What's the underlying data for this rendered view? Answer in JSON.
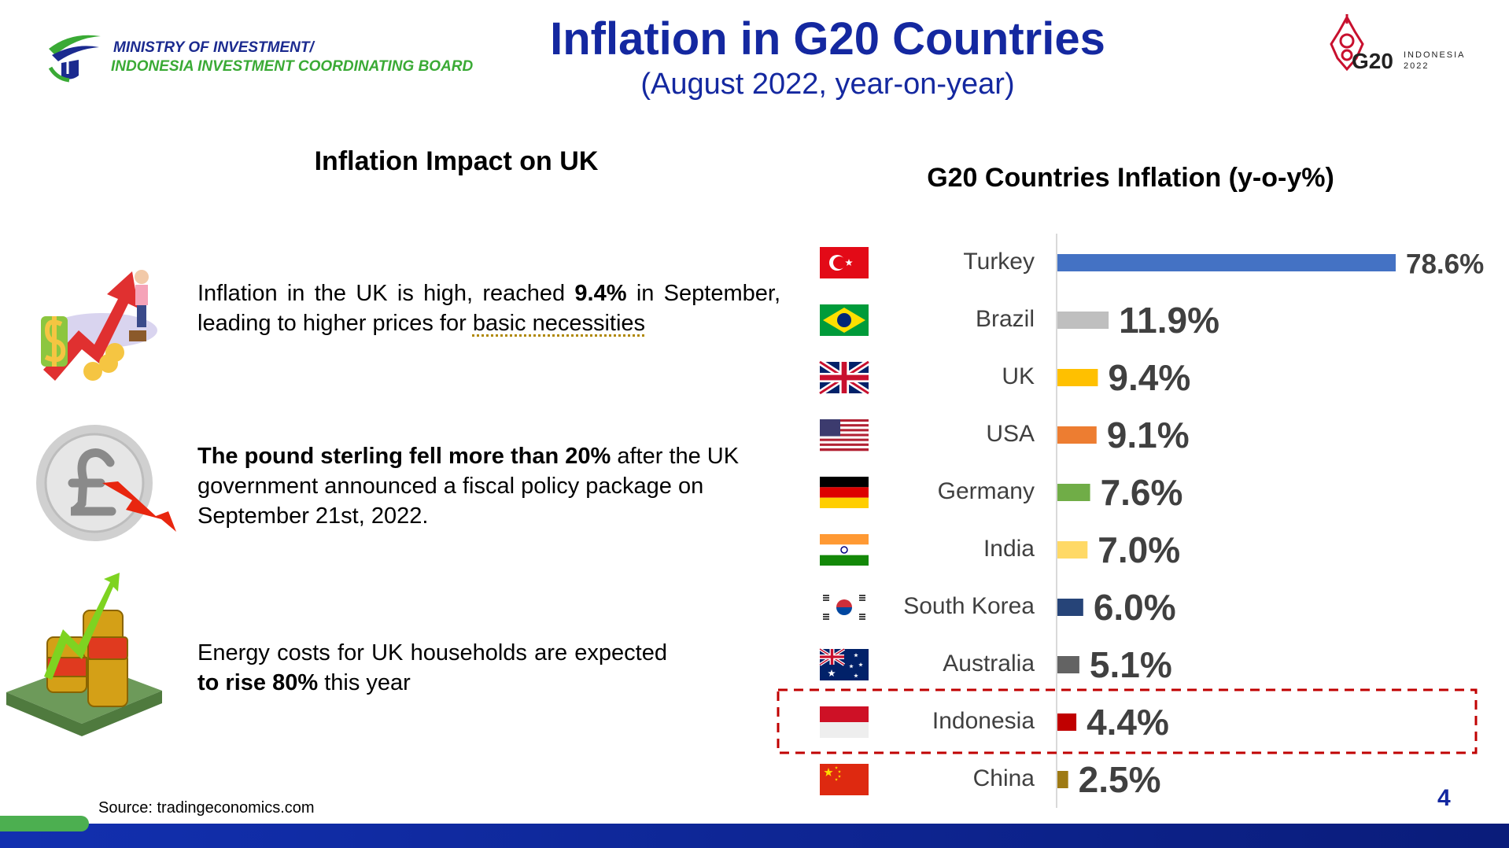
{
  "header": {
    "org_line1": "MINISTRY OF INVESTMENT/",
    "org_line2": "INDONESIA INVESTMENT COORDINATING BOARD",
    "title": "Inflation in G20 Countries",
    "subtitle": "(August 2022, year-on-year)",
    "logo": {
      "mark": "G20",
      "country": "INDONESIA",
      "year": "2022"
    }
  },
  "impact": {
    "title": "Inflation Impact on UK",
    "items": [
      [
        "Inflation in the UK is high, reached ",
        "9.4%",
        " in September, leading to higher prices for ",
        "basic necessities"
      ],
      [
        "The pound sterling fell more than 20%",
        " after the UK government announced a fiscal policy package on September 21st, 2022."
      ],
      [
        "Energy costs for UK households are expected ",
        "to rise 80%",
        " this year"
      ]
    ]
  },
  "source": "Source: tradingeconomics.com",
  "page_number": "4",
  "chart_data": {
    "type": "bar",
    "orientation": "horizontal",
    "title": "G20 Countries Inflation (y-o-y%)",
    "categories": [
      "Turkey",
      "Brazil",
      "UK",
      "USA",
      "Germany",
      "India",
      "South Korea",
      "Australia",
      "Indonesia",
      "China"
    ],
    "values": [
      78.6,
      11.9,
      9.4,
      9.1,
      7.6,
      7.0,
      6.0,
      5.1,
      4.4,
      2.5
    ],
    "value_labels": [
      "78.6%",
      "11.9%",
      "9.4%",
      "9.1%",
      "7.6%",
      "7.0%",
      "6.0%",
      "5.1%",
      "4.4%",
      "2.5%"
    ],
    "colors": [
      "#4472c4",
      "#bfbfbf",
      "#ffc000",
      "#ed7d31",
      "#70ad47",
      "#ffd966",
      "#264478",
      "#636363",
      "#c00000",
      "#9e7a14"
    ],
    "highlight": "Indonesia"
  }
}
